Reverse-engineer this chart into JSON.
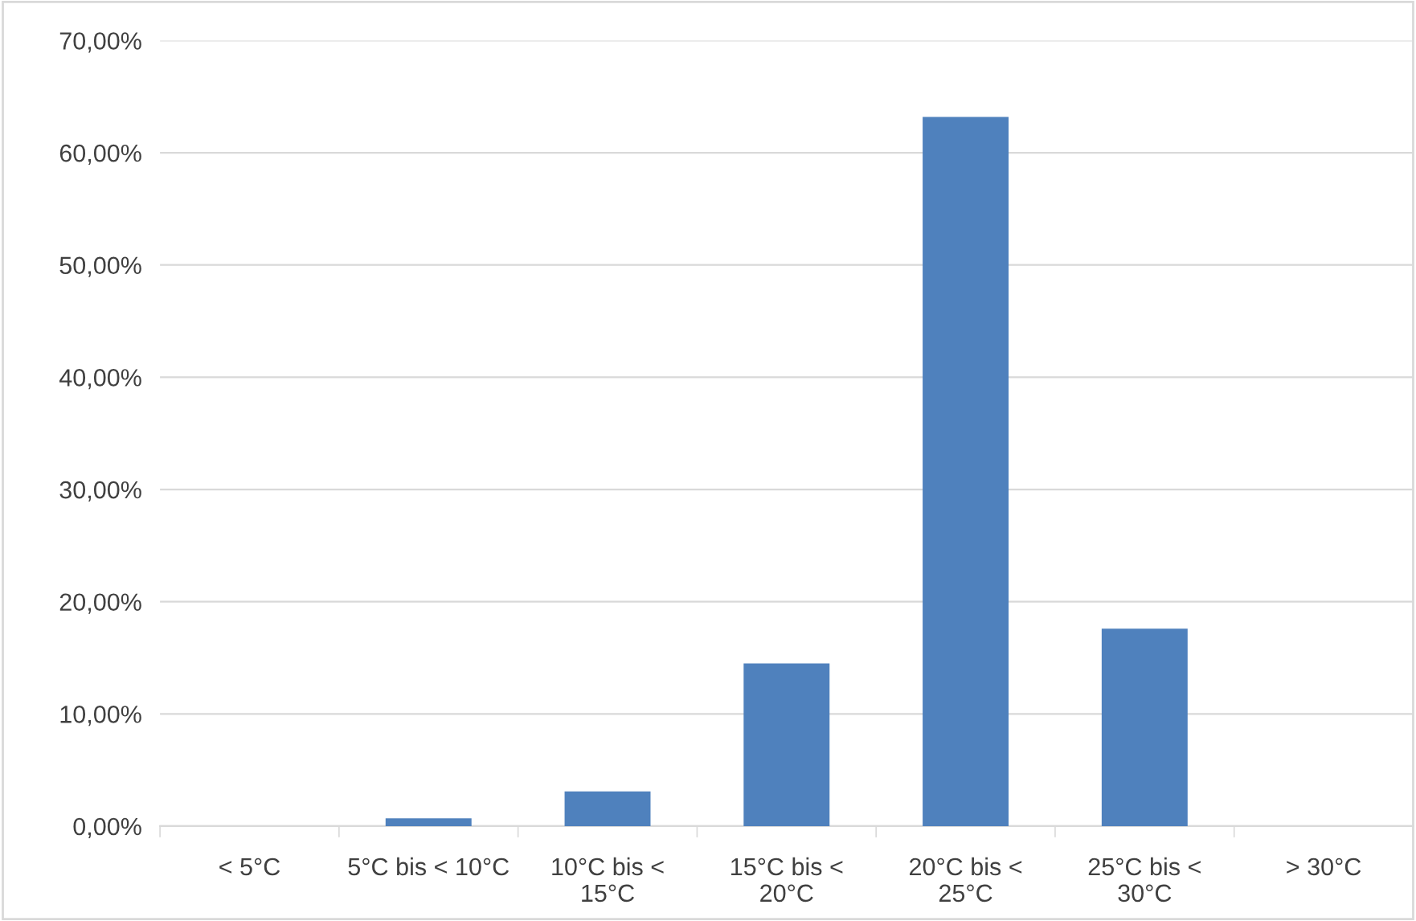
{
  "chart_data": {
    "type": "bar",
    "categories": [
      "< 5°C",
      "5°C bis < 10°C",
      "10°C bis <\n15°C",
      "15°C bis <\n20°C",
      "20°C bis <\n25°C",
      "25°C bis <\n30°C",
      "> 30°C"
    ],
    "values": [
      0,
      0.7,
      3.1,
      14.5,
      63.2,
      17.6,
      0
    ],
    "color": "#4f81bd",
    "ylim": [
      0,
      70
    ],
    "yticks": [
      {
        "value": 0,
        "label": "0,00%"
      },
      {
        "value": 10,
        "label": "10,00%"
      },
      {
        "value": 20,
        "label": "20,00%"
      },
      {
        "value": 30,
        "label": "30,00%"
      },
      {
        "value": 40,
        "label": "40,00%"
      },
      {
        "value": 50,
        "label": "50,00%"
      },
      {
        "value": 60,
        "label": "60,00%"
      },
      {
        "value": 70,
        "label": "70,00%"
      }
    ],
    "grid": "y"
  }
}
